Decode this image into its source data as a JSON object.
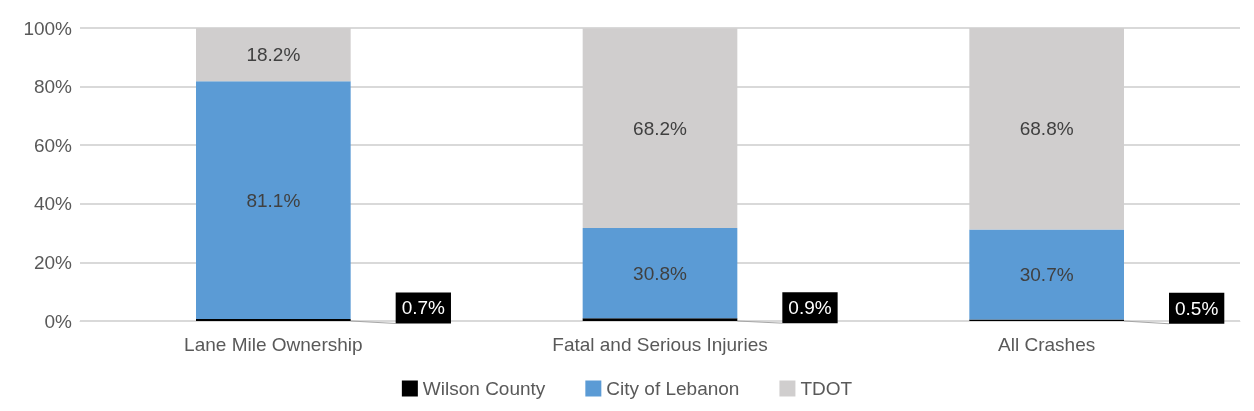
{
  "chart_data": {
    "type": "bar",
    "stacked": true,
    "categories": [
      "Lane Mile Ownership",
      "Fatal and Serious Injuries",
      "All Crashes"
    ],
    "series": [
      {
        "name": "Wilson County",
        "color": "#000000",
        "values": [
          0.7,
          0.9,
          0.5
        ],
        "value_labels": [
          "0.7%",
          "0.9%",
          "0.5%"
        ]
      },
      {
        "name": "City of Lebanon",
        "color": "#5b9bd5",
        "values": [
          81.1,
          30.8,
          30.7
        ],
        "value_labels": [
          "81.1%",
          "30.8%",
          "30.7%"
        ]
      },
      {
        "name": "TDOT",
        "color": "#d0cece",
        "values": [
          18.2,
          68.2,
          68.8
        ],
        "value_labels": [
          "18.2%",
          "68.2%",
          "68.8%"
        ]
      }
    ],
    "ylim": [
      0,
      100
    ],
    "yticks": [
      {
        "value": 0,
        "label": "0%"
      },
      {
        "value": 20,
        "label": "20%"
      },
      {
        "value": 40,
        "label": "40%"
      },
      {
        "value": 60,
        "label": "60%"
      },
      {
        "value": 80,
        "label": "80%"
      },
      {
        "value": 100,
        "label": "100%"
      }
    ],
    "grid": "y",
    "legend": "bottom"
  }
}
